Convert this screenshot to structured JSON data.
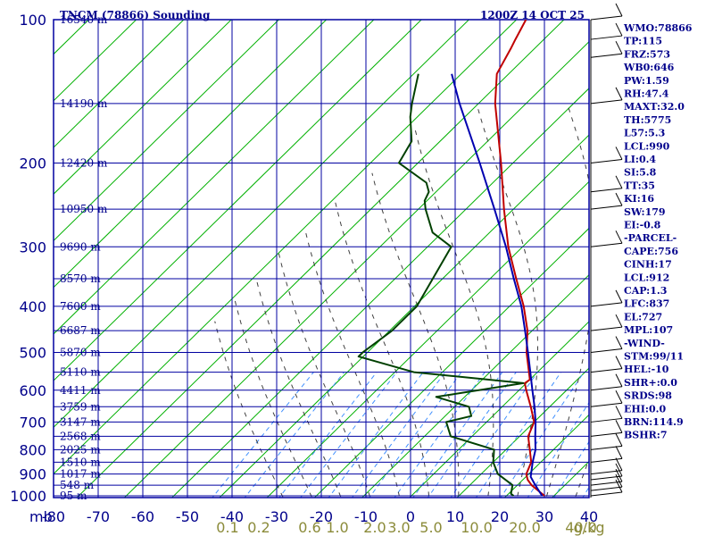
{
  "chart_data": {
    "type": "line",
    "title_left": "TNCM (78866) Sounding",
    "title_right": "1200Z 14 OCT 25",
    "y_unit_label": "mb",
    "x_ticks": [
      "-80",
      "-70",
      "-60",
      "-50",
      "-40",
      "-30",
      "-20",
      "-10",
      "0",
      "10",
      "20",
      "30",
      "40"
    ],
    "pressure_ticks": [
      {
        "p": 100,
        "label": "100"
      },
      {
        "p": 200,
        "label": "200"
      },
      {
        "p": 300,
        "label": "300"
      },
      {
        "p": 400,
        "label": "400"
      },
      {
        "p": 500,
        "label": "500"
      },
      {
        "p": 600,
        "label": "600"
      },
      {
        "p": 700,
        "label": "700"
      },
      {
        "p": 800,
        "label": "800"
      },
      {
        "p": 900,
        "label": "900"
      },
      {
        "p": 1000,
        "label": "1000"
      }
    ],
    "height_labels": [
      {
        "p": 100,
        "label": "16540 m"
      },
      {
        "p": 150,
        "label": "14190 m"
      },
      {
        "p": 200,
        "label": "12420 m"
      },
      {
        "p": 250,
        "label": "10950 m"
      },
      {
        "p": 300,
        "label": "9690 m"
      },
      {
        "p": 350,
        "label": "8570 m"
      },
      {
        "p": 400,
        "label": "7600 m"
      },
      {
        "p": 450,
        "label": "6687 m"
      },
      {
        "p": 500,
        "label": "5870 m"
      },
      {
        "p": 550,
        "label": "5110 m"
      },
      {
        "p": 600,
        "label": "4411 m"
      },
      {
        "p": 650,
        "label": "3759 m"
      },
      {
        "p": 700,
        "label": "3147 m"
      },
      {
        "p": 750,
        "label": "2568 m"
      },
      {
        "p": 800,
        "label": "2025 m"
      },
      {
        "p": 850,
        "label": "1510 m"
      },
      {
        "p": 900,
        "label": "1017 m"
      },
      {
        "p": 950,
        "label": "548 m"
      },
      {
        "p": 1000,
        "label": "95 m"
      }
    ],
    "mixing_ratio_labels": [
      {
        "w": 0.1,
        "label": "0.1"
      },
      {
        "w": 0.2,
        "label": "0.2"
      },
      {
        "w": 0.6,
        "label": "0.6"
      },
      {
        "w": 1.0,
        "label": "1.0"
      },
      {
        "w": 2.0,
        "label": "2.0"
      },
      {
        "w": 3.0,
        "label": "3.0"
      },
      {
        "w": 5.0,
        "label": "5.0"
      },
      {
        "w": 10.0,
        "label": "10.0"
      },
      {
        "w": 20.0,
        "label": "20.0"
      },
      {
        "w": 40.0,
        "label": "40.0"
      }
    ],
    "mixing_ratio_unit": "g/kg",
    "series": [
      {
        "kind": "temperature",
        "color": "#c00000",
        "points": [
          {
            "p": 1000,
            "t": 28.0
          },
          {
            "p": 950,
            "t": 23.0
          },
          {
            "p": 925,
            "t": 21.0
          },
          {
            "p": 900,
            "t": 19.5
          },
          {
            "p": 850,
            "t": 18.0
          },
          {
            "p": 800,
            "t": 15.0
          },
          {
            "p": 750,
            "t": 11.8
          },
          {
            "p": 700,
            "t": 10.0
          },
          {
            "p": 650,
            "t": 6.0
          },
          {
            "p": 600,
            "t": 1.5
          },
          {
            "p": 580,
            "t": -0.3
          },
          {
            "p": 570,
            "t": 0.0
          },
          {
            "p": 500,
            "t": -6.5
          },
          {
            "p": 450,
            "t": -11.0
          },
          {
            "p": 400,
            "t": -17.0
          },
          {
            "p": 350,
            "t": -24.5
          },
          {
            "p": 300,
            "t": -33.0
          },
          {
            "p": 250,
            "t": -42.0
          },
          {
            "p": 200,
            "t": -52.5
          },
          {
            "p": 150,
            "t": -66.5
          },
          {
            "p": 130,
            "t": -72.5
          },
          {
            "p": 115,
            "t": -75.0
          },
          {
            "p": 110,
            "t": -76.0
          },
          {
            "p": 100,
            "t": -78.0
          }
        ]
      },
      {
        "kind": "dewpoint",
        "color": "#004000",
        "points": [
          {
            "p": 1000,
            "t": 21.5
          },
          {
            "p": 990,
            "t": 20.5
          },
          {
            "p": 950,
            "t": 19.0
          },
          {
            "p": 900,
            "t": 13.5
          },
          {
            "p": 850,
            "t": 10.0
          },
          {
            "p": 800,
            "t": 7.5
          },
          {
            "p": 750,
            "t": -4.5
          },
          {
            "p": 700,
            "t": -8.5
          },
          {
            "p": 680,
            "t": -4.5
          },
          {
            "p": 650,
            "t": -7.0
          },
          {
            "p": 620,
            "t": -16.0
          },
          {
            "p": 580,
            "t": -0.6
          },
          {
            "p": 550,
            "t": -26.0
          },
          {
            "p": 510,
            "t": -41.0
          },
          {
            "p": 500,
            "t": -41.0
          },
          {
            "p": 450,
            "t": -39.5
          },
          {
            "p": 400,
            "t": -39.5
          },
          {
            "p": 300,
            "t": -45.0
          },
          {
            "p": 280,
            "t": -52.0
          },
          {
            "p": 250,
            "t": -58.5
          },
          {
            "p": 240,
            "t": -60.5
          },
          {
            "p": 230,
            "t": -61.5
          },
          {
            "p": 220,
            "t": -64.0
          },
          {
            "p": 200,
            "t": -74.0
          },
          {
            "p": 180,
            "t": -76.0
          },
          {
            "p": 160,
            "t": -81.5
          },
          {
            "p": 150,
            "t": -84.0
          },
          {
            "p": 130,
            "t": -89.0
          }
        ]
      },
      {
        "kind": "parcel",
        "color": "#0000b0",
        "points": [
          {
            "p": 1000,
            "t": 27.5
          },
          {
            "p": 950,
            "t": 23.8
          },
          {
            "p": 912,
            "t": 21.0
          },
          {
            "p": 850,
            "t": 18.3
          },
          {
            "p": 800,
            "t": 16.2
          },
          {
            "p": 750,
            "t": 13.3
          },
          {
            "p": 700,
            "t": 10.3
          },
          {
            "p": 650,
            "t": 6.8
          },
          {
            "p": 600,
            "t": 2.8
          },
          {
            "p": 550,
            "t": -1.5
          },
          {
            "p": 500,
            "t": -6.2
          },
          {
            "p": 450,
            "t": -11.5
          },
          {
            "p": 400,
            "t": -17.5
          },
          {
            "p": 350,
            "t": -25.0
          },
          {
            "p": 300,
            "t": -33.5
          },
          {
            "p": 250,
            "t": -44.0
          },
          {
            "p": 200,
            "t": -57.0
          },
          {
            "p": 150,
            "t": -74.0
          },
          {
            "p": 130,
            "t": -82.0
          }
        ]
      }
    ],
    "wind_barbs": [
      {
        "p": 100
      },
      {
        "p": 110
      },
      {
        "p": 120
      },
      {
        "p": 150
      },
      {
        "p": 200
      },
      {
        "p": 230
      },
      {
        "p": 250
      },
      {
        "p": 300
      },
      {
        "p": 400
      },
      {
        "p": 450
      },
      {
        "p": 500
      },
      {
        "p": 550
      },
      {
        "p": 600
      },
      {
        "p": 650
      },
      {
        "p": 700
      },
      {
        "p": 750
      },
      {
        "p": 800
      },
      {
        "p": 850
      },
      {
        "p": 900
      },
      {
        "p": 925
      },
      {
        "p": 950
      },
      {
        "p": 975
      },
      {
        "p": 1000
      }
    ],
    "indices": [
      "WMO:78866",
      "TP:115",
      "FRZ:573",
      "WB0:646",
      "PW:1.59",
      "RH:47.4",
      "MAXT:32.0",
      "TH:5775",
      "L57:5.3",
      "LCL:990",
      "LI:0.4",
      "SI:5.8",
      "TT:35",
      "KI:16",
      "SW:179",
      "EI:-0.8",
      "-PARCEL-",
      "CAPE:756",
      "CINH:17",
      "LCL:912",
      "CAP:1.3",
      "LFC:837",
      "EL:727",
      "MPL:107",
      "-WIND-",
      "STM:99/11",
      "HEL:-10",
      "SHR+:0.0",
      "SRDS:98",
      "EHI:0.0",
      "BRN:114.9",
      "BSHR:7"
    ],
    "colors": {
      "grid": "#0000a0",
      "dry_adiabat": "#00b000",
      "moist_adiabat": "#404040",
      "mixing_ratio": "#4090ff",
      "text": "#00008b"
    }
  }
}
